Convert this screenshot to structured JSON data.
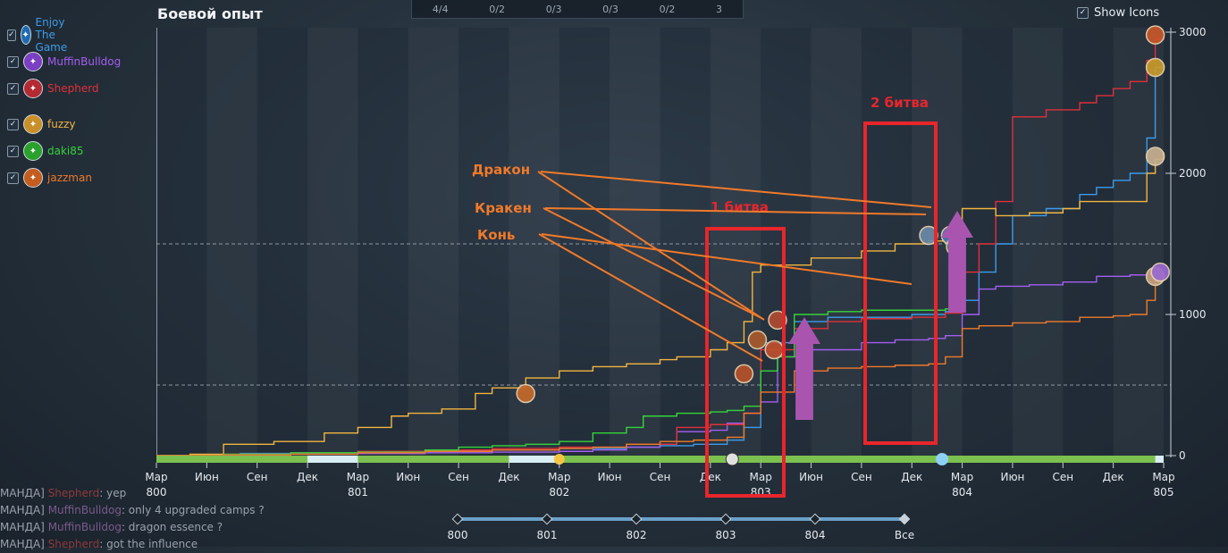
{
  "title": "Боевой опыт",
  "show_icons": {
    "label": "Show Icons",
    "checked": true
  },
  "top_bar": [
    "4/4",
    "0/2",
    "0/3",
    "0/3",
    "0/2",
    "3"
  ],
  "players": [
    {
      "name": "Enjoy The Game",
      "color": "#3d9be9",
      "checked": true
    },
    {
      "name": "MuffinBulldog",
      "color": "#a45ef2",
      "checked": true
    },
    {
      "name": "Shepherd",
      "color": "#e0303a",
      "checked": true
    },
    {
      "name": "fuzzy",
      "color": "#f2b540",
      "checked": true
    },
    {
      "name": "daki85",
      "color": "#36d33a",
      "checked": true
    },
    {
      "name": "jazzman",
      "color": "#f07a2a",
      "checked": true
    }
  ],
  "annotations": {
    "dragon": "Дракон",
    "kraken": "Кракен",
    "horse": "Конь",
    "battle1": "1 битва",
    "battle2": "2 битва",
    "annotation_color": "#f07a2a",
    "box_color": "#e8262b",
    "arrow_color": "#a955b0"
  },
  "timeline": {
    "ticks": [
      "Мар",
      "Июн",
      "Сен",
      "Дек",
      "Мар",
      "Июн",
      "Сен",
      "Дек",
      "Мар",
      "Июн",
      "Сен",
      "Дек",
      "Мар",
      "Июн",
      "Сен",
      "Дек",
      "Мар",
      "Июн",
      "Сен",
      "Дек",
      "Мар"
    ],
    "years": [
      "800",
      "801",
      "802",
      "803",
      "804",
      "805"
    ]
  },
  "slider": {
    "labels": [
      "800",
      "801",
      "802",
      "803",
      "804",
      "Все"
    ]
  },
  "chat": [
    {
      "prefix": "МАНДА]",
      "name": "Shepherd",
      "name_color": "red",
      "text": ": yep"
    },
    {
      "prefix": "МАНДА]",
      "name": "MuffinBulldog",
      "name_color": "purple",
      "text": ": only 4 upgraded camps ?"
    },
    {
      "prefix": "МАНДА]",
      "name": "MuffinBulldog",
      "name_color": "purple",
      "text": ": dragon essence ?"
    },
    {
      "prefix": "МАНДА]",
      "name": "Shepherd",
      "name_color": "red",
      "text": ": got the influence"
    }
  ],
  "chart_data": {
    "type": "line",
    "title": "Боевой опыт",
    "x_unit": "months since Мар 800",
    "x_range": [
      0,
      60
    ],
    "y_range": [
      0,
      3000
    ],
    "y_ticks": [
      0,
      1000,
      2000,
      3000
    ],
    "y_dashed": [
      500,
      1500
    ],
    "series": [
      {
        "name": "Enjoy The Game",
        "color": "#3d9be9",
        "points": [
          [
            0,
            0
          ],
          [
            3,
            8
          ],
          [
            5,
            15
          ],
          [
            8,
            20
          ],
          [
            12,
            30
          ],
          [
            16,
            35
          ],
          [
            20,
            40
          ],
          [
            24,
            50
          ],
          [
            28,
            60
          ],
          [
            30,
            70
          ],
          [
            32,
            80
          ],
          [
            34,
            110
          ],
          [
            35,
            200
          ],
          [
            36,
            800
          ],
          [
            38,
            950
          ],
          [
            40,
            980
          ],
          [
            45,
            1000
          ],
          [
            47,
            1020
          ],
          [
            48,
            1100
          ],
          [
            49,
            1300
          ],
          [
            50,
            1500
          ],
          [
            51,
            1700
          ],
          [
            53,
            1750
          ],
          [
            55,
            1850
          ],
          [
            56,
            1900
          ],
          [
            57,
            1950
          ],
          [
            58,
            2000
          ],
          [
            59,
            2250
          ],
          [
            59.5,
            2750
          ],
          [
            60,
            2770
          ]
        ]
      },
      {
        "name": "MuffinBulldog",
        "color": "#a45ef2",
        "points": [
          [
            0,
            0
          ],
          [
            4,
            5
          ],
          [
            8,
            10
          ],
          [
            12,
            15
          ],
          [
            16,
            20
          ],
          [
            20,
            25
          ],
          [
            24,
            30
          ],
          [
            26,
            40
          ],
          [
            28,
            60
          ],
          [
            30,
            80
          ],
          [
            31,
            170
          ],
          [
            33,
            180
          ],
          [
            34,
            230
          ],
          [
            35,
            300
          ],
          [
            36,
            380
          ],
          [
            37,
            700
          ],
          [
            39,
            750
          ],
          [
            42,
            800
          ],
          [
            44,
            820
          ],
          [
            46,
            830
          ],
          [
            47,
            850
          ],
          [
            48,
            1000
          ],
          [
            49,
            1180
          ],
          [
            50,
            1200
          ],
          [
            52,
            1210
          ],
          [
            54,
            1230
          ],
          [
            56,
            1270
          ],
          [
            58,
            1280
          ],
          [
            59,
            1290
          ],
          [
            59.5,
            1300
          ],
          [
            60,
            1300
          ]
        ]
      },
      {
        "name": "Shepherd",
        "color": "#e0303a",
        "points": [
          [
            0,
            0
          ],
          [
            4,
            10
          ],
          [
            8,
            20
          ],
          [
            12,
            30
          ],
          [
            16,
            40
          ],
          [
            20,
            50
          ],
          [
            24,
            60
          ],
          [
            28,
            80
          ],
          [
            31,
            200
          ],
          [
            33,
            220
          ],
          [
            35,
            300
          ],
          [
            36,
            750
          ],
          [
            38,
            900
          ],
          [
            40,
            950
          ],
          [
            42,
            970
          ],
          [
            45,
            980
          ],
          [
            47,
            1010
          ],
          [
            48,
            1300
          ],
          [
            49,
            1500
          ],
          [
            50,
            1800
          ],
          [
            51,
            2400
          ],
          [
            53,
            2450
          ],
          [
            55,
            2500
          ],
          [
            56,
            2550
          ],
          [
            57,
            2600
          ],
          [
            58,
            2650
          ],
          [
            59,
            2800
          ],
          [
            59.5,
            2950
          ],
          [
            60,
            2960
          ]
        ]
      },
      {
        "name": "fuzzy",
        "color": "#f2b540",
        "points": [
          [
            0,
            0
          ],
          [
            2,
            10
          ],
          [
            4,
            80
          ],
          [
            7,
            100
          ],
          [
            10,
            160
          ],
          [
            12,
            200
          ],
          [
            14,
            280
          ],
          [
            15,
            300
          ],
          [
            17,
            330
          ],
          [
            19,
            440
          ],
          [
            20,
            480
          ],
          [
            22,
            550
          ],
          [
            24,
            600
          ],
          [
            26,
            630
          ],
          [
            28,
            650
          ],
          [
            30,
            680
          ],
          [
            31,
            700
          ],
          [
            33,
            750
          ],
          [
            34,
            800
          ],
          [
            35,
            950
          ],
          [
            35.5,
            1300
          ],
          [
            36,
            1350
          ],
          [
            39,
            1400
          ],
          [
            42,
            1450
          ],
          [
            44,
            1500
          ],
          [
            46,
            1520
          ],
          [
            48,
            1750
          ],
          [
            50,
            1700
          ],
          [
            52,
            1720
          ],
          [
            54,
            1750
          ],
          [
            55,
            1800
          ],
          [
            57,
            1800
          ],
          [
            58,
            1800
          ],
          [
            59,
            2000
          ],
          [
            59.5,
            2100
          ],
          [
            60,
            2150
          ]
        ]
      },
      {
        "name": "daki85",
        "color": "#36d33a",
        "points": [
          [
            0,
            0
          ],
          [
            4,
            10
          ],
          [
            8,
            20
          ],
          [
            12,
            25
          ],
          [
            16,
            40
          ],
          [
            18,
            60
          ],
          [
            20,
            70
          ],
          [
            22,
            80
          ],
          [
            24,
            100
          ],
          [
            26,
            160
          ],
          [
            28,
            200
          ],
          [
            29,
            280
          ],
          [
            31,
            300
          ],
          [
            33,
            310
          ],
          [
            34,
            320
          ],
          [
            35,
            350
          ],
          [
            36,
            600
          ],
          [
            37,
            700
          ],
          [
            38,
            1000
          ],
          [
            40,
            1020
          ],
          [
            42,
            1030
          ],
          [
            44,
            1030
          ],
          [
            46,
            1030
          ],
          [
            47,
            1040
          ],
          [
            48,
            1050
          ]
        ]
      },
      {
        "name": "jazzman",
        "color": "#f07a2a",
        "points": [
          [
            0,
            0
          ],
          [
            4,
            5
          ],
          [
            8,
            10
          ],
          [
            12,
            20
          ],
          [
            16,
            30
          ],
          [
            20,
            40
          ],
          [
            24,
            50
          ],
          [
            26,
            60
          ],
          [
            28,
            80
          ],
          [
            30,
            100
          ],
          [
            32,
            110
          ],
          [
            34,
            130
          ],
          [
            35,
            300
          ],
          [
            36,
            450
          ],
          [
            38,
            600
          ],
          [
            40,
            620
          ],
          [
            42,
            630
          ],
          [
            44,
            640
          ],
          [
            46,
            650
          ],
          [
            47,
            700
          ],
          [
            48,
            900
          ],
          [
            49,
            920
          ],
          [
            51,
            940
          ],
          [
            53,
            950
          ],
          [
            55,
            980
          ],
          [
            57,
            990
          ],
          [
            58,
            1000
          ],
          [
            59,
            1100
          ],
          [
            59.5,
            1250
          ],
          [
            60,
            1280
          ]
        ]
      }
    ]
  }
}
